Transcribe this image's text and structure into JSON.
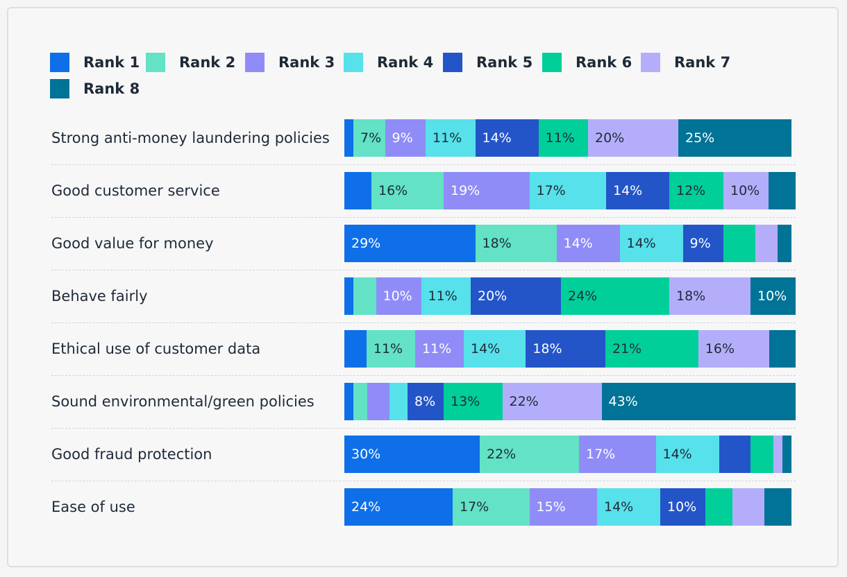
{
  "chart_data": {
    "type": "bar",
    "orientation": "horizontal",
    "stacked": true,
    "title": "",
    "xlabel": "",
    "ylabel": "",
    "xlim": [
      0,
      100
    ],
    "legend_position": "top-left",
    "categories": [
      "Strong anti-money laundering policies",
      "Good customer service",
      "Good value for money",
      "Behave fairly",
      "Ethical use of customer data",
      "Sound environmental/green policies",
      "Good fraud protection",
      "Ease of use"
    ],
    "series": [
      {
        "name": "Rank 1",
        "color": "#0f6fe8",
        "label_color": "#ffffff",
        "values": [
          2,
          6,
          29,
          2,
          5,
          2,
          30,
          24
        ],
        "labels": [
          "",
          "",
          "29%",
          "",
          "",
          "",
          "30%",
          "24%"
        ]
      },
      {
        "name": "Rank 2",
        "color": "#63e2c5",
        "label_color": "#1f2a37",
        "values": [
          7,
          16,
          18,
          5,
          11,
          3,
          22,
          17
        ],
        "labels": [
          "7%",
          "16%",
          "18%",
          "",
          "11%",
          "",
          "22%",
          "17%"
        ]
      },
      {
        "name": "Rank 3",
        "color": "#8f8cf7",
        "label_color": "#ffffff",
        "values": [
          9,
          19,
          14,
          10,
          11,
          5,
          17,
          15
        ],
        "labels": [
          "9%",
          "19%",
          "14%",
          "10%",
          "11%",
          "",
          "17%",
          "15%"
        ]
      },
      {
        "name": "Rank 4",
        "color": "#57e1ea",
        "label_color": "#1f2a37",
        "values": [
          11,
          17,
          14,
          11,
          14,
          4,
          14,
          14
        ],
        "labels": [
          "11%",
          "17%",
          "14%",
          "11%",
          "14%",
          "",
          "14%",
          "14%"
        ]
      },
      {
        "name": "Rank 5",
        "color": "#2355c9",
        "label_color": "#ffffff",
        "values": [
          14,
          14,
          9,
          20,
          18,
          8,
          7,
          10
        ],
        "labels": [
          "14%",
          "14%",
          "9%",
          "20%",
          "18%",
          "8%",
          "",
          "10%"
        ]
      },
      {
        "name": "Rank 6",
        "color": "#00cf9a",
        "label_color": "#1f2a37",
        "values": [
          11,
          12,
          7,
          24,
          21,
          13,
          5,
          6
        ],
        "labels": [
          "11%",
          "12%",
          "",
          "24%",
          "21%",
          "13%",
          "",
          ""
        ]
      },
      {
        "name": "Rank 7",
        "color": "#b4aefa",
        "label_color": "#1f2a37",
        "values": [
          20,
          10,
          5,
          18,
          16,
          22,
          2,
          7
        ],
        "labels": [
          "20%",
          "10%",
          "",
          "18%",
          "16%",
          "22%",
          "",
          ""
        ]
      },
      {
        "name": "Rank 8",
        "color": "#017396",
        "label_color": "#ffffff",
        "values": [
          25,
          6,
          3,
          10,
          6,
          43,
          2,
          6
        ],
        "labels": [
          "25%",
          "",
          "",
          "10%",
          "",
          "43%",
          "",
          ""
        ]
      }
    ]
  }
}
